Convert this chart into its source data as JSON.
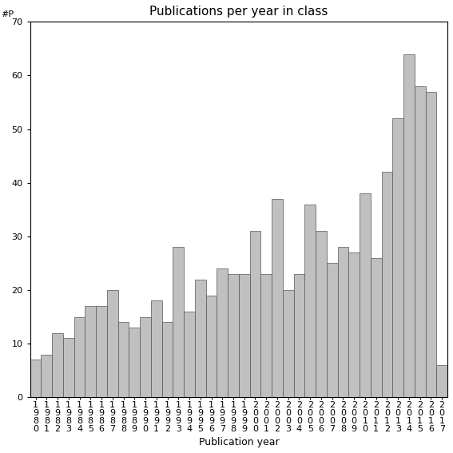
{
  "title": "Publications per year in class",
  "xlabel": "Publication year",
  "ylabel": "#P",
  "years": [
    "1980",
    "1981",
    "1982",
    "1983",
    "1984",
    "1985",
    "1986",
    "1987",
    "1988",
    "1989",
    "1990",
    "1991",
    "1992",
    "1993",
    "1994",
    "1995",
    "1996",
    "1997",
    "1998",
    "1999",
    "2000",
    "2001",
    "2002",
    "2003",
    "2004",
    "2005",
    "2006",
    "2007",
    "2008",
    "2009",
    "2010",
    "2011",
    "2012",
    "2013",
    "2014",
    "2015",
    "2016",
    "2017"
  ],
  "values": [
    7,
    8,
    12,
    11,
    15,
    17,
    17,
    20,
    14,
    13,
    15,
    18,
    14,
    28,
    16,
    22,
    19,
    24,
    23,
    23,
    31,
    23,
    37,
    20,
    23,
    36,
    31,
    25,
    28,
    27,
    38,
    26,
    42,
    52,
    64,
    58,
    57,
    6
  ],
  "bar_color": "#c0c0c0",
  "bar_edgecolor": "#555555",
  "ylim": [
    0,
    70
  ],
  "yticks": [
    0,
    10,
    20,
    30,
    40,
    50,
    60,
    70
  ],
  "background_color": "#ffffff",
  "figsize": [
    5.67,
    5.67
  ],
  "dpi": 100,
  "title_fontsize": 11,
  "axis_label_fontsize": 9,
  "tick_fontsize": 8,
  "ylabel_fontsize": 8
}
